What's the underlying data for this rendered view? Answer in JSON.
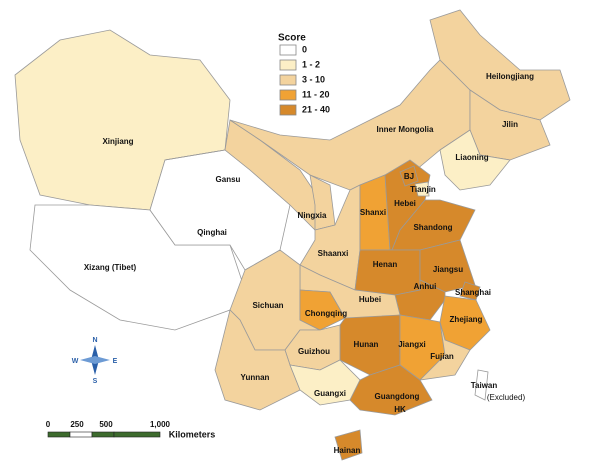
{
  "legend": {
    "title": "Score",
    "items": [
      {
        "label": "0",
        "color": "#ffffff"
      },
      {
        "label": "1 - 2",
        "color": "#fcefc6"
      },
      {
        "label": "3 - 10",
        "color": "#f3d39e"
      },
      {
        "label": "11 - 20",
        "color": "#f0a234"
      },
      {
        "label": "21 - 40",
        "color": "#d6892b"
      }
    ]
  },
  "regions": [
    {
      "label": "Xinjiang",
      "color": "#fcefc6"
    },
    {
      "label": "Xizang (Tibet)",
      "color": "#ffffff"
    },
    {
      "label": "Qinghai",
      "color": "#ffffff"
    },
    {
      "label": "Gansu",
      "color": "#f3d39e"
    },
    {
      "label": "Inner Mongolia",
      "color": "#f3d39e"
    },
    {
      "label": "Heilongjiang",
      "color": "#f3d39e"
    },
    {
      "label": "Jilin",
      "color": "#f3d39e"
    },
    {
      "label": "Liaoning",
      "color": "#fcefc6"
    },
    {
      "label": "Ningxia",
      "color": "#f3d39e"
    },
    {
      "label": "Shaanxi",
      "color": "#f3d39e"
    },
    {
      "label": "Shanxi",
      "color": "#f0a234"
    },
    {
      "label": "Hebei",
      "color": "#d6892b"
    },
    {
      "label": "Shandong",
      "color": "#d6892b"
    },
    {
      "label": "Henan",
      "color": "#d6892b"
    },
    {
      "label": "Jiangsu",
      "color": "#d6892b"
    },
    {
      "label": "Anhui",
      "color": "#d6892b"
    },
    {
      "label": "Shanghai",
      "color": "#d6892b"
    },
    {
      "label": "Zhejiang",
      "color": "#f0a234"
    },
    {
      "label": "Hubei",
      "color": "#f3d39e"
    },
    {
      "label": "Sichuan",
      "color": "#f3d39e"
    },
    {
      "label": "Chongqing",
      "color": "#f0a234"
    },
    {
      "label": "Hunan",
      "color": "#d6892b"
    },
    {
      "label": "Jiangxi",
      "color": "#f0a234"
    },
    {
      "label": "Fujian",
      "color": "#f3d39e"
    },
    {
      "label": "Guizhou",
      "color": "#f3d39e"
    },
    {
      "label": "Yunnan",
      "color": "#f3d39e"
    },
    {
      "label": "Guangxi",
      "color": "#fcefc6"
    },
    {
      "label": "Guangdong",
      "color": "#d6892b"
    },
    {
      "label": "Hainan",
      "color": "#d6892b"
    },
    {
      "label": "BJ",
      "color": "#d6892b"
    },
    {
      "label": "Tianjin",
      "color": "#fcefc6"
    }
  ],
  "other_labels": {
    "hk": "HK",
    "taiwan": "Taiwan",
    "taiwan_note": "(Excluded)"
  },
  "compass": {
    "n": "N",
    "s": "S",
    "e": "E",
    "w": "W"
  },
  "scale_bar": {
    "ticks": [
      "0",
      "250",
      "500",
      "1,000"
    ],
    "unit": "Kilometers"
  }
}
